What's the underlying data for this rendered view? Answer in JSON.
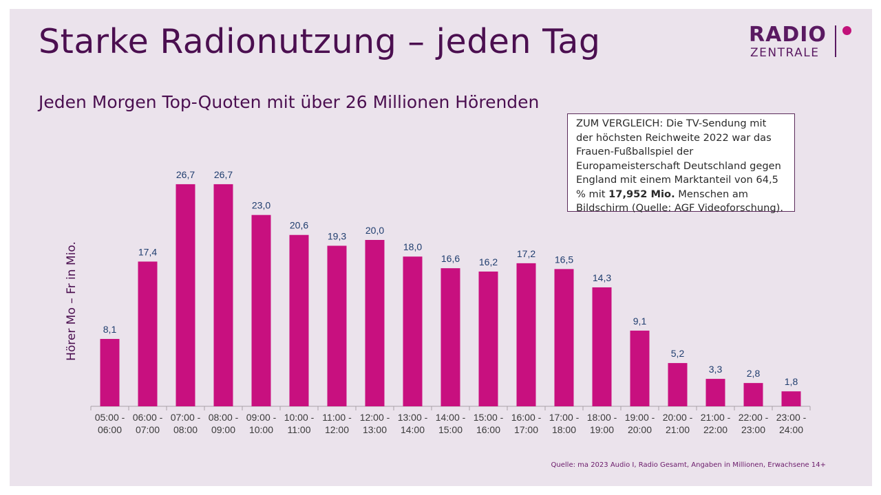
{
  "title": "Starke Radionutzung – jeden Tag",
  "subtitle": "Jeden Morgen Top-Quoten mit über 26 Millionen Hörenden",
  "logo": {
    "line1": "RADIO",
    "line2": "ZENTRALE"
  },
  "note": {
    "part1": "ZUM VERGLEICH: Die TV-Sendung mit der höchsten Reichweite 2022 war das Frauen-Fußballspiel der Europameisterschaft Deutschland gegen England mit einem Marktanteil von 64,5 % mit ",
    "bold": "17,952 Mio.",
    "part2": " Menschen am Bildschirm (Quelle: AGF Videoforschung)."
  },
  "source": "Quelle: ma 2023 Audio I, Radio Gesamt, Angaben in Millionen, Erwachsene 14+",
  "colors": {
    "bar": "#c8107f",
    "label": "#1f3d6e",
    "title": "#4b0f50"
  },
  "chart_data": {
    "type": "bar",
    "ylabel": "Hörer Mo – Fr in Mio.",
    "xlabel": "",
    "ylim": [
      0,
      30
    ],
    "grid": false,
    "categories": [
      [
        "05:00 -",
        "06:00"
      ],
      [
        "06:00 -",
        "07:00"
      ],
      [
        "07:00 -",
        "08:00"
      ],
      [
        "08:00 -",
        "09:00"
      ],
      [
        "09:00 -",
        "10:00"
      ],
      [
        "10:00 -",
        "11:00"
      ],
      [
        "11:00 -",
        "12:00"
      ],
      [
        "12:00 -",
        "13:00"
      ],
      [
        "13:00 -",
        "14:00"
      ],
      [
        "14:00 -",
        "15:00"
      ],
      [
        "15:00 -",
        "16:00"
      ],
      [
        "16:00 -",
        "17:00"
      ],
      [
        "17:00 -",
        "18:00"
      ],
      [
        "18:00 -",
        "19:00"
      ],
      [
        "19:00 -",
        "20:00"
      ],
      [
        "20:00 -",
        "21:00"
      ],
      [
        "21:00 -",
        "22:00"
      ],
      [
        "22:00 -",
        "23:00"
      ],
      [
        "23:00 -",
        "24:00"
      ]
    ],
    "values": [
      8.1,
      17.4,
      26.7,
      26.7,
      23.0,
      20.6,
      19.3,
      20.0,
      18.0,
      16.6,
      16.2,
      17.2,
      16.5,
      14.3,
      9.1,
      5.2,
      3.3,
      2.8,
      1.8
    ],
    "value_labels": [
      "8,1",
      "17,4",
      "26,7",
      "26,7",
      "23,0",
      "20,6",
      "19,3",
      "20,0",
      "18,0",
      "16,6",
      "16,2",
      "17,2",
      "16,5",
      "14,3",
      "9,1",
      "5,2",
      "3,3",
      "2,8",
      "1,8"
    ]
  }
}
